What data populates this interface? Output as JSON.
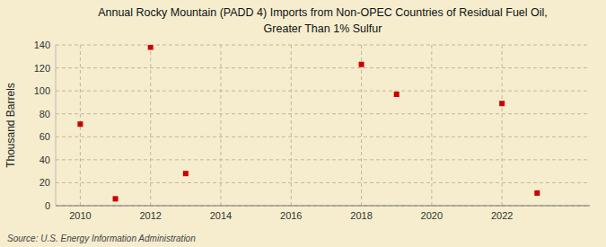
{
  "chart_data": {
    "type": "scatter",
    "title": "Annual Rocky Mountain (PADD 4) Imports from Non-OPEC Countries of Residual Fuel Oil,",
    "subtitle": "Greater Than 1% Sulfur",
    "y_label": "Thousand Barrels",
    "annotations": [
      "Source: U.S. Energy Information Administration"
    ],
    "x": [
      2010,
      2011,
      2012,
      2013,
      2018,
      2019,
      2022,
      2023
    ],
    "values": [
      71,
      6,
      138,
      28,
      123,
      97,
      89,
      11
    ],
    "color": "#cc0000",
    "marker": "square",
    "xlim": [
      2009.3,
      2024.5
    ],
    "ylim": [
      0,
      140
    ],
    "xticks": [
      2010,
      2012,
      2014,
      2016,
      2018,
      2020,
      2022
    ],
    "yticks": [
      0,
      20,
      40,
      60,
      80,
      100,
      120,
      140
    ],
    "grid": true
  }
}
